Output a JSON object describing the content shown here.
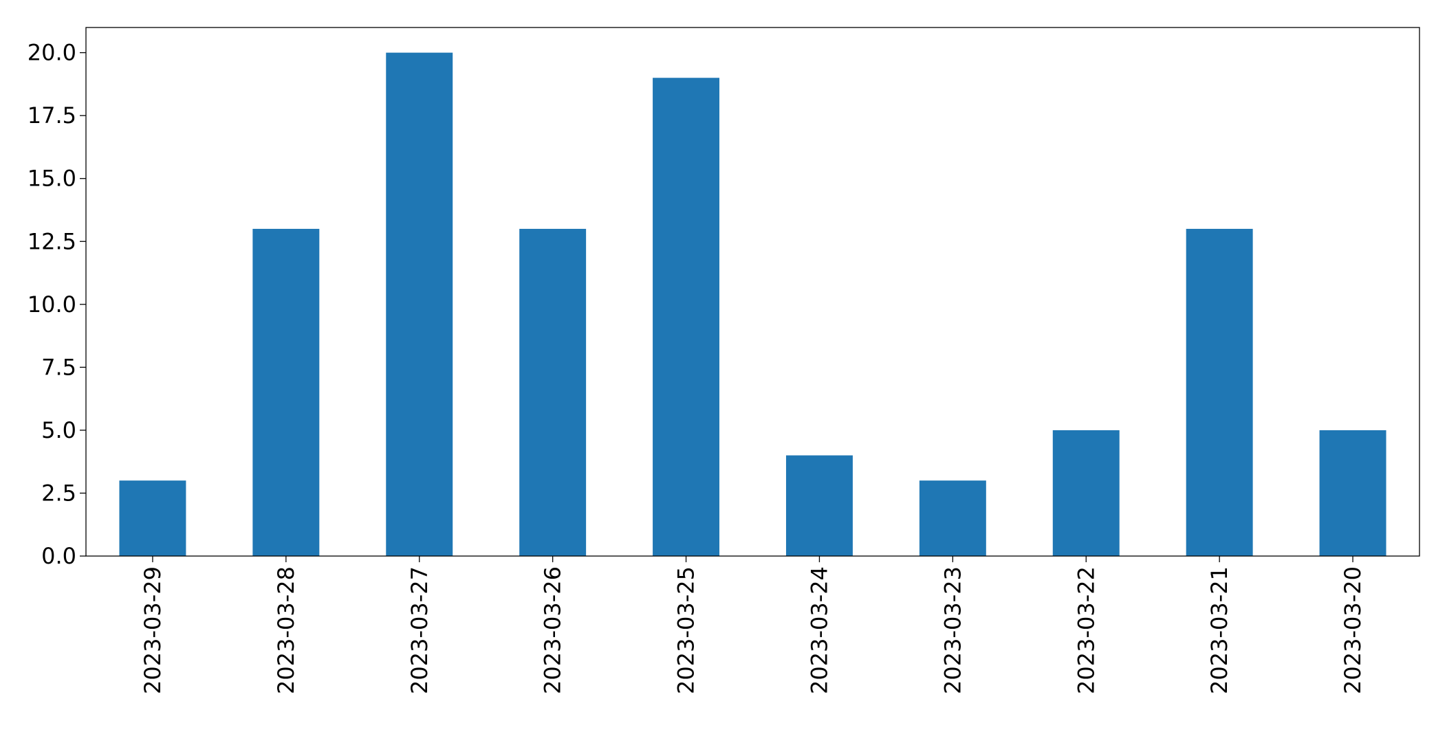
{
  "chart_data": {
    "type": "bar",
    "categories": [
      "2023-03-29",
      "2023-03-28",
      "2023-03-27",
      "2023-03-26",
      "2023-03-25",
      "2023-03-24",
      "2023-03-23",
      "2023-03-22",
      "2023-03-21",
      "2023-03-20"
    ],
    "values": [
      3,
      13,
      20,
      13,
      19,
      4,
      3,
      5,
      13,
      5
    ],
    "color": "#1f77b4",
    "ylim": [
      0,
      21
    ],
    "yticks": [
      {
        "value": 0,
        "label": "0.0"
      },
      2.5,
      {
        "value": 5,
        "label": "5.0"
      },
      7.5,
      {
        "value": 10,
        "label": "10.0"
      },
      12.5,
      {
        "value": 15,
        "label": "15.0"
      },
      17.5,
      {
        "value": 20,
        "label": "20.0"
      }
    ],
    "grid": false
  }
}
